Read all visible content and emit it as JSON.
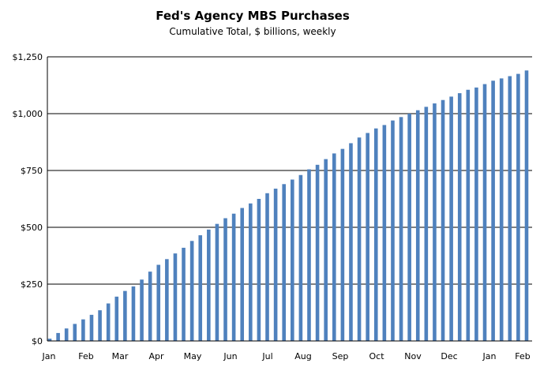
{
  "chart_data": {
    "type": "bar",
    "title": "Fed's Agency MBS Purchases",
    "subtitle": "Cumulative Total, $ billions, weekly",
    "xlabel": "",
    "ylabel": "",
    "ylim": [
      0,
      1250
    ],
    "y_ticks": [
      0,
      250,
      500,
      750,
      1000,
      1250
    ],
    "y_tick_labels": [
      "$0",
      "$250",
      "$500",
      "$750",
      "$1,000",
      "$1,250"
    ],
    "x_tick_labels": [
      "Jan",
      "Feb",
      "Mar",
      "Apr",
      "May",
      "Jun",
      "Jul",
      "Aug",
      "Sep",
      "Oct",
      "Nov",
      "Dec",
      "Jan",
      "Feb"
    ],
    "grid": "horizontal",
    "bar_color": "#4f81bd",
    "values": [
      10,
      35,
      55,
      75,
      95,
      115,
      135,
      165,
      195,
      220,
      240,
      270,
      305,
      335,
      360,
      385,
      410,
      440,
      465,
      490,
      515,
      540,
      560,
      585,
      605,
      625,
      650,
      670,
      690,
      710,
      730,
      755,
      775,
      800,
      825,
      845,
      870,
      895,
      915,
      935,
      950,
      970,
      985,
      1000,
      1015,
      1030,
      1045,
      1060,
      1075,
      1090,
      1105,
      1115,
      1130,
      1145,
      1155,
      1165,
      1175,
      1190
    ]
  }
}
